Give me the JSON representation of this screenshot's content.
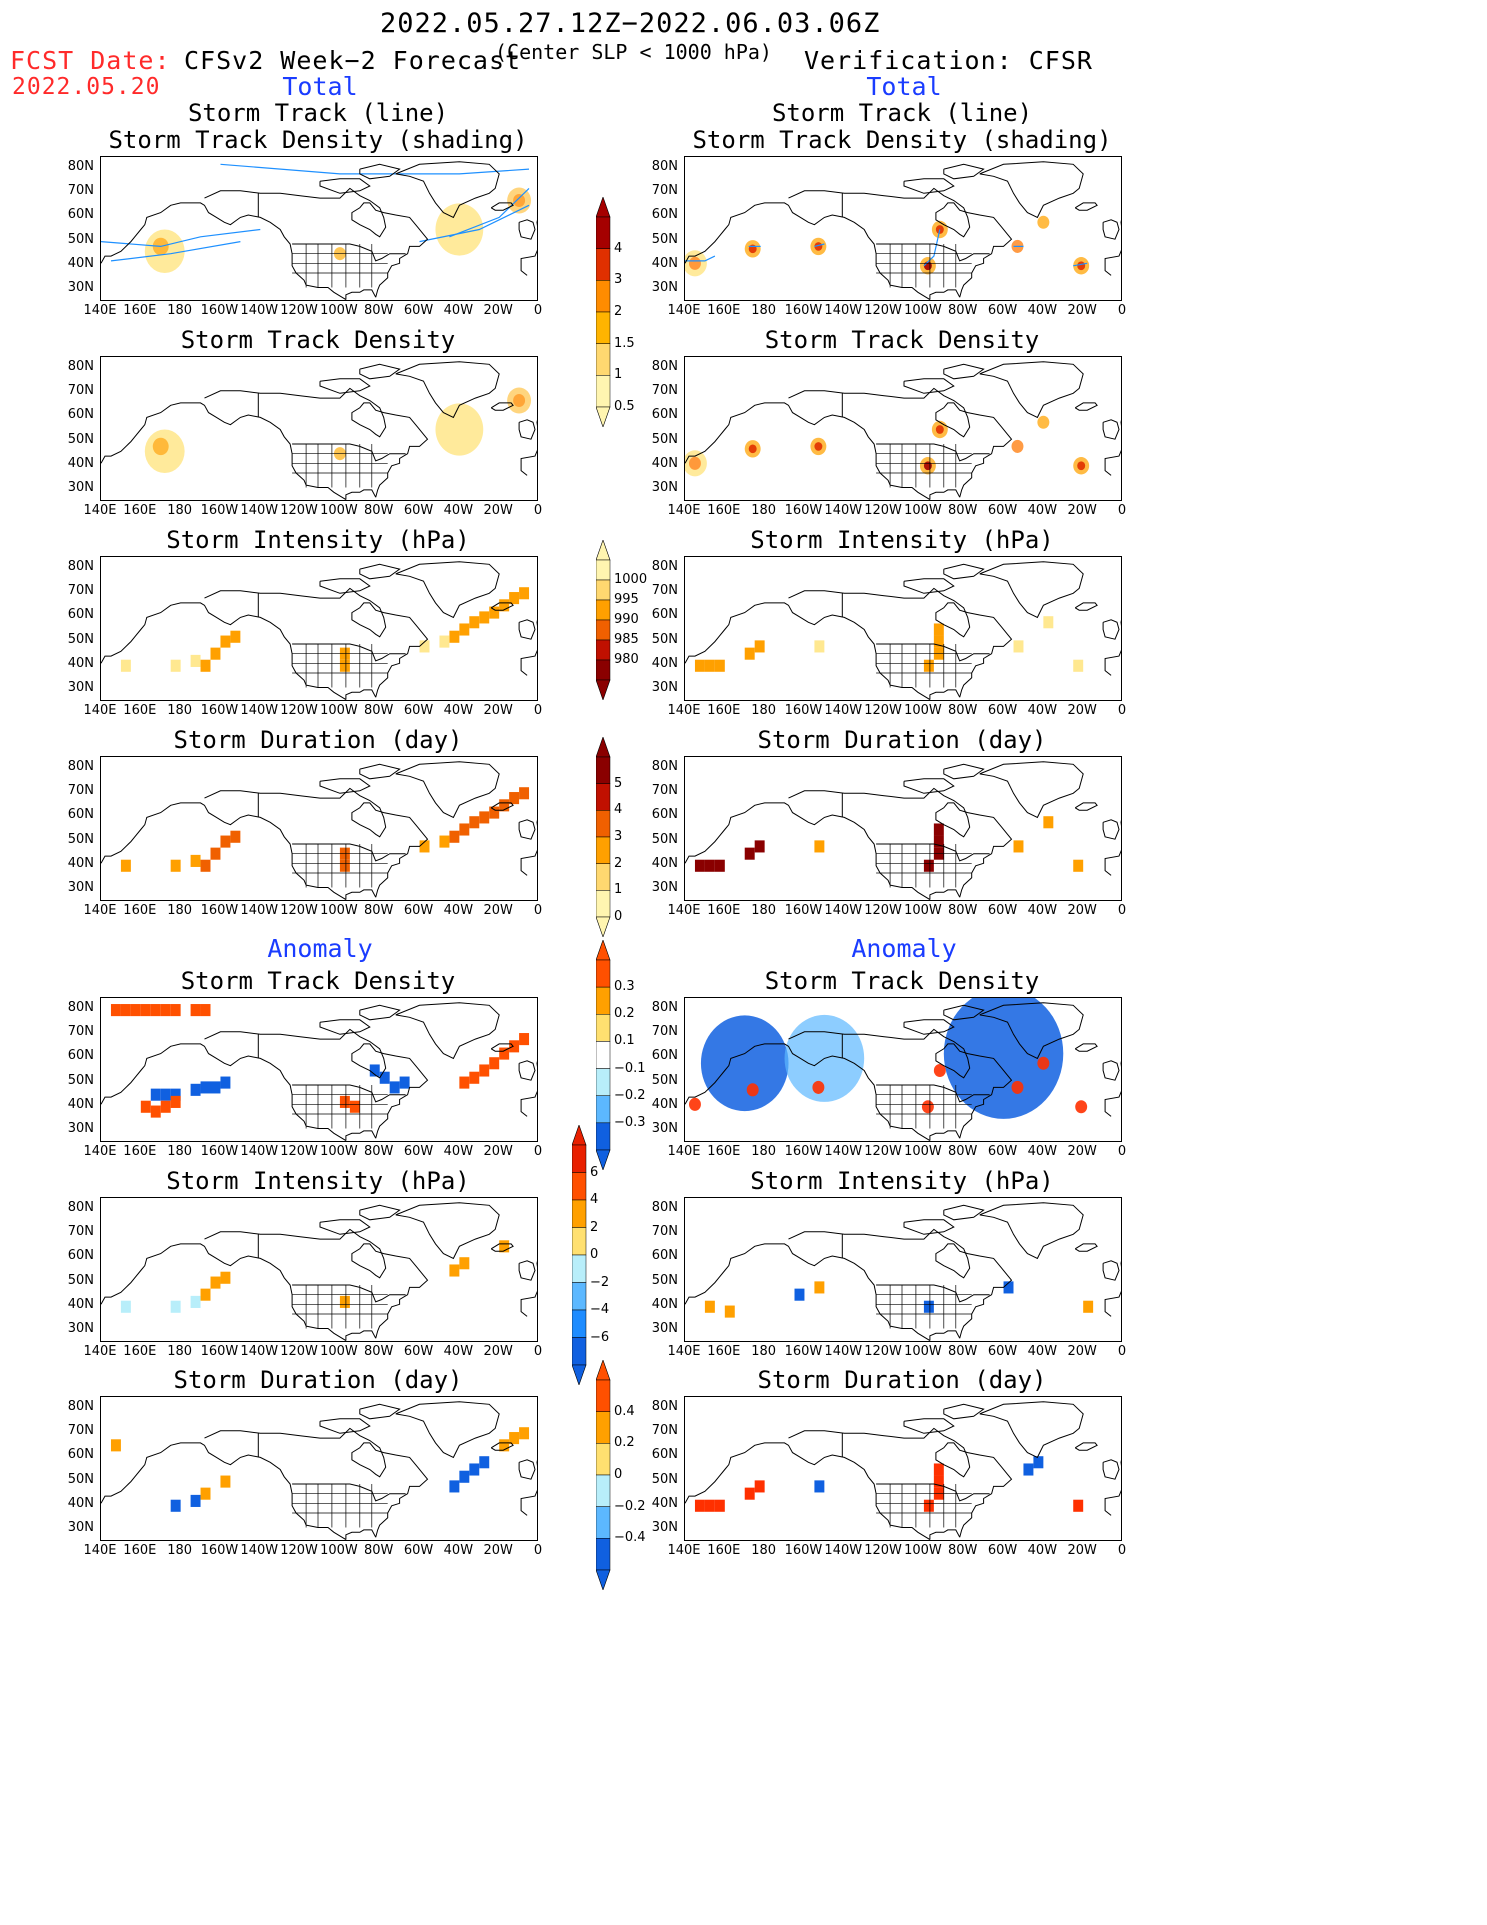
{
  "header": {
    "date_range": "2022.05.27.12Z−2022.06.03.06Z",
    "subtitle": "(Center SLP < 1000 hPa)",
    "fcst_label": "FCST Date:",
    "fcst_date": "2022.05.20",
    "left_title": "CFSv2 Week−2 Forecast",
    "right_title": "Verification: CFSR"
  },
  "sections": {
    "total": "Total",
    "anomaly": "Anomaly"
  },
  "panel_titles": {
    "track_line": "Storm Track (line)",
    "track_shading": "Storm Track Density (shading)",
    "density": "Storm Track Density",
    "intensity": "Storm Intensity (hPa)",
    "duration": "Storm Duration (day)"
  },
  "axes": {
    "lat_labels": [
      "80N",
      "70N",
      "60N",
      "50N",
      "40N",
      "30N"
    ],
    "lon_labels": [
      "140E",
      "160E",
      "180",
      "160W",
      "140W",
      "120W",
      "100W",
      "80W",
      "60W",
      "40W",
      "20W",
      "0"
    ]
  },
  "colorbars": [
    {
      "labels": [
        "4",
        "3",
        "2",
        "1.5",
        "1",
        "0.5"
      ],
      "colors": [
        "#a50000",
        "#e03000",
        "#ff8c00",
        "#ffb400",
        "#ffd870",
        "#fff5b0"
      ]
    },
    {
      "labels": [
        "1000",
        "995",
        "990",
        "985",
        "980"
      ],
      "colors": [
        "#fff5b0",
        "#ffd870",
        "#ffa000",
        "#f06000",
        "#c01000",
        "#8a0000"
      ]
    },
    {
      "labels": [
        "5",
        "4",
        "3",
        "2",
        "1",
        "0"
      ],
      "colors": [
        "#8a0000",
        "#c01000",
        "#f06000",
        "#ffa000",
        "#ffd870",
        "#fff5b0"
      ]
    },
    {
      "labels": [
        "0.3",
        "0.2",
        "0.1",
        "−0.1",
        "−0.2",
        "−0.3"
      ],
      "colors": [
        "#ff5000",
        "#ffa000",
        "#ffe070",
        "#ffffff",
        "#b8eefa",
        "#5cb8ff",
        "#1060e0"
      ]
    },
    {
      "labels": [
        "6",
        "4",
        "2",
        "0",
        "−2",
        "−4",
        "−6"
      ],
      "colors": [
        "#e82000",
        "#ff5000",
        "#ffa000",
        "#ffe070",
        "#b8eefa",
        "#5cb8ff",
        "#1e8cff",
        "#1060e0"
      ]
    },
    {
      "labels": [
        "0.4",
        "0.2",
        "0",
        "−0.2",
        "−0.4"
      ],
      "colors": [
        "#ff5000",
        "#ffa000",
        "#ffe070",
        "#b8eefa",
        "#5cb8ff",
        "#1060e0"
      ]
    }
  ]
}
